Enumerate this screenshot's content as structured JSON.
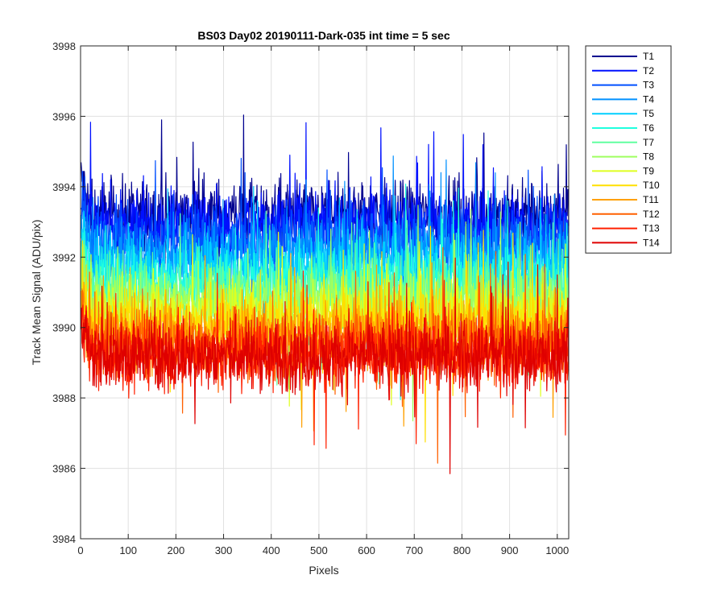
{
  "chart_data": {
    "type": "line",
    "title": "BS03 Day02 20190111-Dark-035 int time = 5 sec",
    "xlabel": "Pixels",
    "ylabel": "Track Mean Signal (ADU/pix)",
    "xlim": [
      0,
      1024
    ],
    "ylim": [
      3984,
      3998
    ],
    "xticks": [
      "0",
      "100",
      "200",
      "300",
      "400",
      "500",
      "600",
      "700",
      "800",
      "900",
      "1000"
    ],
    "yticks": [
      "3984",
      "3986",
      "3988",
      "3990",
      "3992",
      "3994",
      "3996",
      "3998"
    ],
    "grid": true,
    "legend_position": "outside-top-right",
    "x_points": 1024,
    "series": [
      {
        "name": "T1",
        "color": "#00008f",
        "mean": 3993.2,
        "noise": 0.7
      },
      {
        "name": "T2",
        "color": "#0010ff",
        "mean": 3992.9,
        "noise": 0.7
      },
      {
        "name": "T3",
        "color": "#0050ff",
        "mean": 3992.5,
        "noise": 0.7
      },
      {
        "name": "T4",
        "color": "#0090ff",
        "mean": 3992.1,
        "noise": 0.7
      },
      {
        "name": "T5",
        "color": "#00cfff",
        "mean": 3991.7,
        "noise": 0.7
      },
      {
        "name": "T6",
        "color": "#20ffdf",
        "mean": 3991.3,
        "noise": 0.7
      },
      {
        "name": "T7",
        "color": "#60ff9f",
        "mean": 3991.0,
        "noise": 0.7
      },
      {
        "name": "T8",
        "color": "#9fff60",
        "mean": 3990.7,
        "noise": 0.7
      },
      {
        "name": "T9",
        "color": "#dfff20",
        "mean": 3990.4,
        "noise": 0.7
      },
      {
        "name": "T10",
        "color": "#ffdf00",
        "mean": 3990.1,
        "noise": 0.7
      },
      {
        "name": "T11",
        "color": "#ffa000",
        "mean": 3989.8,
        "noise": 0.7
      },
      {
        "name": "T12",
        "color": "#ff6000",
        "mean": 3989.5,
        "noise": 0.7
      },
      {
        "name": "T13",
        "color": "#ff2000",
        "mean": 3989.3,
        "noise": 0.7
      },
      {
        "name": "T14",
        "color": "#df0000",
        "mean": 3989.2,
        "noise": 0.7
      }
    ]
  }
}
